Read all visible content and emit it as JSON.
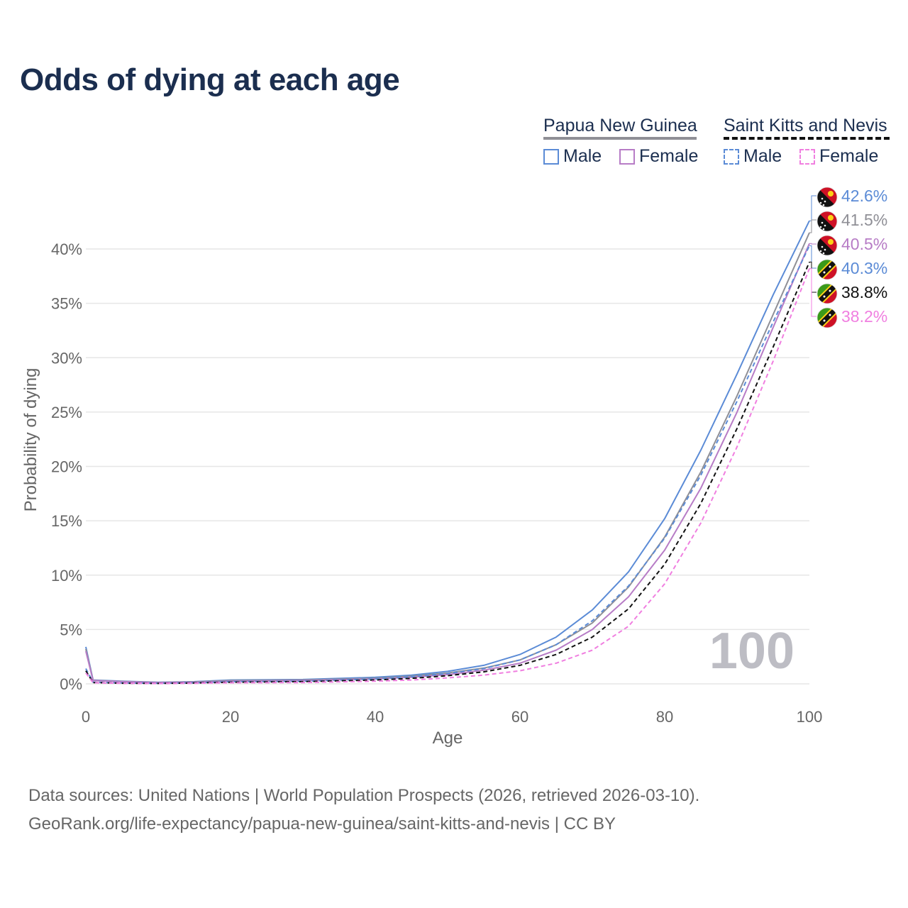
{
  "title": "Odds of dying at each age",
  "legend": {
    "group1": {
      "label": "Papua New Guinea",
      "male": "Male",
      "female": "Female"
    },
    "group2": {
      "label": "Saint Kitts and Nevis",
      "male": "Male",
      "female": "Female"
    }
  },
  "colors": {
    "male": "#5b8bd6",
    "female": "#b77cc6",
    "png_total": "#8f8f96",
    "skn_total": "#111111",
    "skn_female": "#f07fe0",
    "grid": "#e6e6e6",
    "axis_text": "#666666",
    "title": "#1b2e4f"
  },
  "chart_data": {
    "type": "line",
    "xlabel": "Age",
    "ylabel": "Probability of dying",
    "xlim": [
      0,
      100
    ],
    "ylim": [
      0,
      40
    ],
    "x_ticks": [
      0,
      20,
      40,
      60,
      80,
      100
    ],
    "y_ticks": [
      0,
      5,
      10,
      15,
      20,
      25,
      30,
      35,
      40
    ],
    "x_tick_labels": [
      "0",
      "20",
      "40",
      "60",
      "80",
      "100"
    ],
    "y_tick_labels": [
      "0%",
      "5%",
      "10%",
      "15%",
      "20%",
      "25%",
      "30%",
      "35%",
      "40%"
    ],
    "age_watermark": "100",
    "x": [
      0,
      1,
      5,
      10,
      15,
      20,
      30,
      40,
      45,
      50,
      55,
      60,
      65,
      70,
      75,
      80,
      85,
      90,
      95,
      100
    ],
    "series": [
      {
        "name": "Papua New Guinea Male",
        "country": "png",
        "sex": "male",
        "style": "solid",
        "values": [
          3.4,
          0.35,
          0.25,
          0.15,
          0.2,
          0.35,
          0.4,
          0.6,
          0.8,
          1.15,
          1.7,
          2.7,
          4.3,
          6.8,
          10.3,
          15.2,
          21.5,
          28.5,
          35.8,
          42.6
        ],
        "label": "42.6%"
      },
      {
        "name": "Papua New Guinea Total",
        "country": "png",
        "sex": "total",
        "style": "solid",
        "values": [
          3.2,
          0.32,
          0.22,
          0.13,
          0.18,
          0.3,
          0.35,
          0.5,
          0.7,
          1.0,
          1.45,
          2.2,
          3.6,
          5.6,
          8.9,
          13.5,
          19.5,
          26.5,
          34.0,
          41.5
        ],
        "label": "41.5%"
      },
      {
        "name": "Papua New Guinea Female",
        "country": "png",
        "sex": "female",
        "style": "solid",
        "values": [
          3.0,
          0.3,
          0.2,
          0.12,
          0.15,
          0.25,
          0.3,
          0.45,
          0.6,
          0.85,
          1.25,
          1.9,
          3.1,
          5.0,
          8.0,
          12.3,
          18.0,
          25.0,
          32.8,
          40.5
        ],
        "label": "40.5%"
      },
      {
        "name": "Saint Kitts and Nevis Male",
        "country": "skn",
        "sex": "male",
        "style": "dashed",
        "values": [
          1.4,
          0.15,
          0.08,
          0.05,
          0.1,
          0.2,
          0.25,
          0.45,
          0.65,
          0.95,
          1.4,
          2.2,
          3.6,
          5.8,
          9.0,
          13.4,
          19.2,
          26.0,
          33.3,
          40.3
        ],
        "label": "40.3%"
      },
      {
        "name": "Saint Kitts and Nevis Total",
        "country": "skn",
        "sex": "total",
        "style": "dashed",
        "values": [
          1.2,
          0.12,
          0.06,
          0.04,
          0.08,
          0.15,
          0.2,
          0.35,
          0.5,
          0.75,
          1.1,
          1.7,
          2.7,
          4.3,
          6.9,
          11.0,
          16.6,
          23.5,
          31.0,
          38.8
        ],
        "label": "38.8%"
      },
      {
        "name": "Saint Kitts and Nevis Female",
        "country": "skn",
        "sex": "female",
        "style": "dashed",
        "values": [
          1.0,
          0.1,
          0.05,
          0.03,
          0.05,
          0.1,
          0.12,
          0.25,
          0.35,
          0.55,
          0.8,
          1.2,
          1.9,
          3.1,
          5.3,
          9.2,
          14.8,
          21.8,
          29.7,
          38.2
        ],
        "label": "38.2%"
      }
    ]
  },
  "footer": {
    "line1": "Data sources: United Nations | World Population Prospects (2026, retrieved 2026-03-10).",
    "line2": "GeoRank.org/life-expectancy/papua-new-guinea/saint-kitts-and-nevis | CC BY"
  }
}
